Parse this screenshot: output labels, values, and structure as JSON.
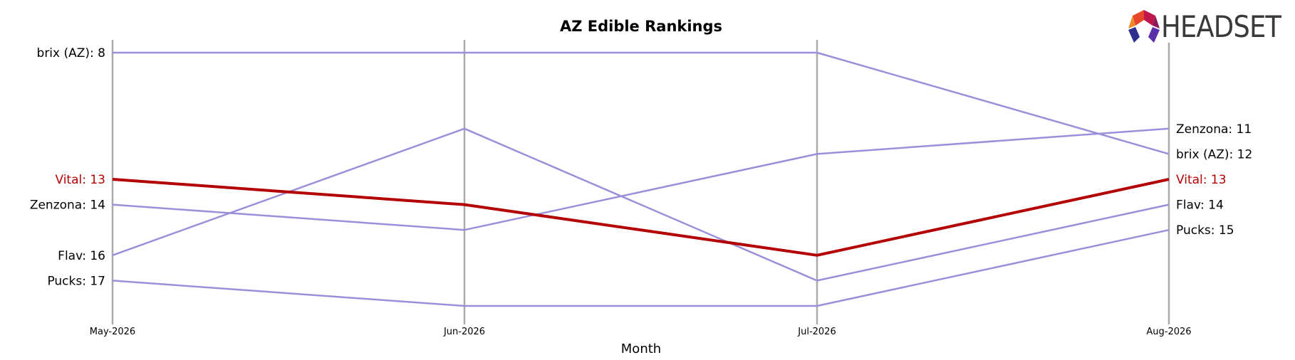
{
  "brand": {
    "logo_text": "HEADSET"
  },
  "colors": {
    "highlight": "#b30000",
    "series": "#9b8fd9",
    "axis": "#aaaaaa"
  },
  "chart_data": {
    "type": "line",
    "title": "AZ Edible Rankings",
    "xlabel": "Month",
    "ylabel": "",
    "x": [
      "May-2026",
      "Jun-2026",
      "Jul-2026",
      "Aug-2026"
    ],
    "y_inverted": true,
    "ylim": [
      8,
      18
    ],
    "grid": false,
    "legend": "none",
    "highlight_series": "Vital",
    "series": [
      {
        "name": "brix (AZ)",
        "values": [
          8,
          8,
          8,
          12
        ],
        "start_label": "brix (AZ): 8",
        "end_label": "brix (AZ): 12"
      },
      {
        "name": "Vital",
        "values": [
          13,
          14,
          16,
          13
        ],
        "start_label": "Vital: 13",
        "end_label": "Vital: 13"
      },
      {
        "name": "Zenzona",
        "values": [
          14,
          15,
          12,
          11
        ],
        "start_label": "Zenzona: 14",
        "end_label": "Zenzona: 11"
      },
      {
        "name": "Flav",
        "values": [
          16,
          11,
          17,
          14
        ],
        "start_label": "Flav: 16",
        "end_label": "Flav: 14"
      },
      {
        "name": "Pucks",
        "values": [
          17,
          18,
          18,
          15
        ],
        "start_label": "Pucks: 17",
        "end_label": "Pucks: 15"
      }
    ]
  }
}
